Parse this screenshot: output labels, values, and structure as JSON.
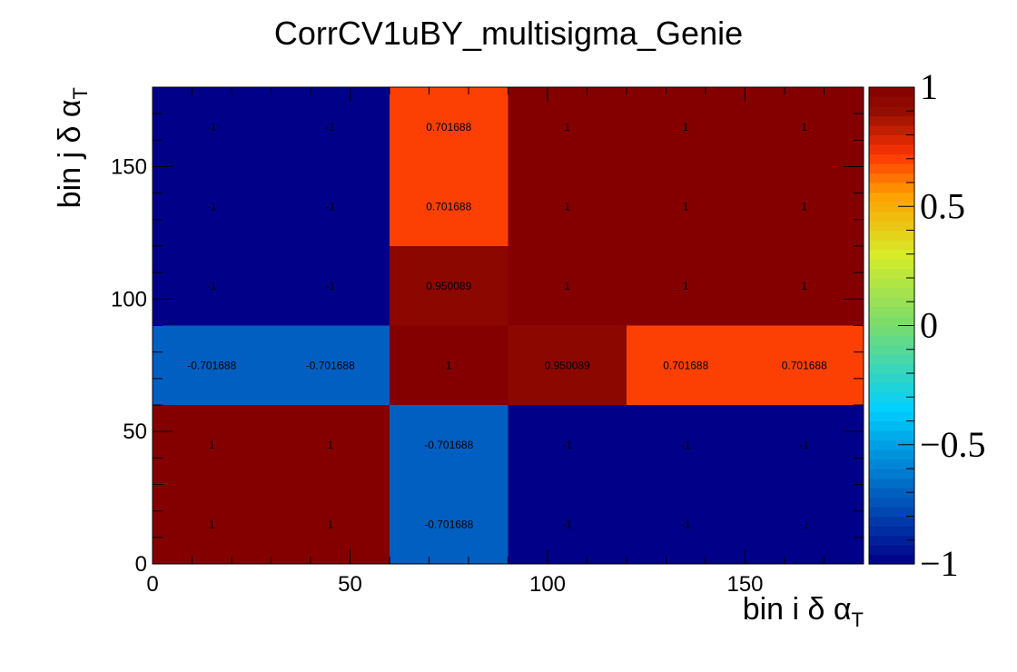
{
  "chart_data": {
    "type": "heatmap",
    "title": "CorrCV1uBY_multisigma_Genie",
    "xlabel": "bin i δ α",
    "xlabel_sub": "T",
    "ylabel": "bin j δ α",
    "ylabel_sub": "T",
    "xlim": [
      0,
      180
    ],
    "ylim": [
      0,
      180
    ],
    "x_ticks": [
      0,
      50,
      100,
      150
    ],
    "y_ticks": [
      0,
      50,
      100,
      150
    ],
    "zlim": [
      -1,
      1
    ],
    "colorbar_ticks": [
      1,
      0.5,
      0,
      -0.5,
      -1
    ],
    "colorbar_tick_labels": [
      "1",
      "0.5",
      "0",
      "−0.5",
      "−1"
    ],
    "x_edges": [
      0,
      30,
      60,
      90,
      120,
      150,
      180
    ],
    "y_edges": [
      0,
      30,
      60,
      90,
      120,
      150,
      180
    ],
    "grid_top_to_bottom": [
      [
        -1,
        -1,
        0.701688,
        1,
        1,
        1
      ],
      [
        -1,
        -1,
        0.701688,
        1,
        1,
        1
      ],
      [
        -1,
        -1,
        0.950089,
        1,
        1,
        1
      ],
      [
        -0.701688,
        -0.701688,
        1,
        0.950089,
        0.701688,
        0.701688
      ],
      [
        1,
        1,
        -0.701688,
        -1,
        -1,
        -1
      ],
      [
        1,
        1,
        -0.701688,
        -1,
        -1,
        -1
      ]
    ],
    "cell_labels_top_to_bottom": [
      [
        "-1",
        "-1",
        "0.701688",
        "1",
        "1",
        "1"
      ],
      [
        "-1",
        "-1",
        "0.701688",
        "1",
        "1",
        "1"
      ],
      [
        "-1",
        "-1",
        "0.950089",
        "1",
        "1",
        "1"
      ],
      [
        "-0.701688",
        "-0.701688",
        "1",
        "0.950089",
        "0.701688",
        "0.701688"
      ],
      [
        "1",
        "1",
        "-0.701688",
        "-1",
        "-1",
        "-1"
      ],
      [
        "1",
        "1",
        "-0.701688",
        "-1",
        "-1",
        "-1"
      ]
    ],
    "colorscale": "root-rainbow",
    "grid": false
  }
}
